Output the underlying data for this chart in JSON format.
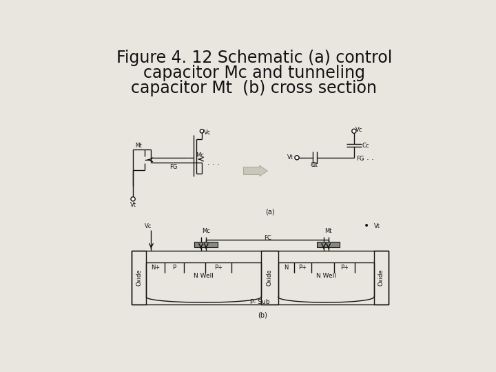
{
  "bg_color": "#e8e6df",
  "title_lines": [
    "Figure 4. 12 Schematic (a) control",
    "capacitor Mc and tunneling",
    "capacitor Mt  (b) cross section"
  ],
  "title_fontsize": 17,
  "title_color": "#111111",
  "label_a": "(a)",
  "label_b": "(b)"
}
